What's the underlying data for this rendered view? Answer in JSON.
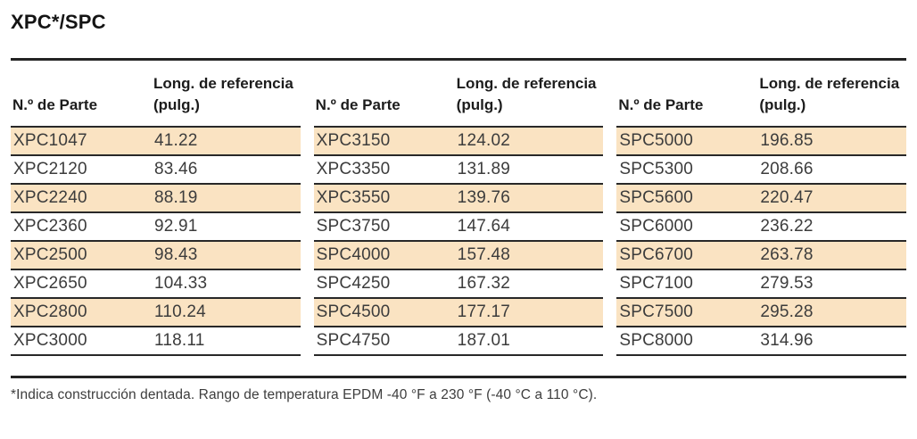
{
  "title": "XPC*/SPC",
  "table": {
    "headers": {
      "part": "N.º de Parte",
      "length": "Long. de referencia (pulg.)"
    },
    "groups": [
      {
        "rows": [
          {
            "part": "XPC1047",
            "length": "41.22"
          },
          {
            "part": "XPC2120",
            "length": "83.46"
          },
          {
            "part": "XPC2240",
            "length": "88.19"
          },
          {
            "part": "XPC2360",
            "length": "92.91"
          },
          {
            "part": "XPC2500",
            "length": "98.43"
          },
          {
            "part": "XPC2650",
            "length": "104.33"
          },
          {
            "part": "XPC2800",
            "length": "110.24"
          },
          {
            "part": "XPC3000",
            "length": "118.11"
          }
        ]
      },
      {
        "rows": [
          {
            "part": "XPC3150",
            "length": "124.02"
          },
          {
            "part": "XPC3350",
            "length": "131.89"
          },
          {
            "part": "XPC3550",
            "length": "139.76"
          },
          {
            "part": "SPC3750",
            "length": "147.64"
          },
          {
            "part": "SPC4000",
            "length": "157.48"
          },
          {
            "part": "SPC4250",
            "length": "167.32"
          },
          {
            "part": "SPC4500",
            "length": "177.17"
          },
          {
            "part": "SPC4750",
            "length": "187.01"
          }
        ]
      },
      {
        "rows": [
          {
            "part": "SPC5000",
            "length": "196.85"
          },
          {
            "part": "SPC5300",
            "length": "208.66"
          },
          {
            "part": "SPC5600",
            "length": "220.47"
          },
          {
            "part": "SPC6000",
            "length": "236.22"
          },
          {
            "part": "SPC6700",
            "length": "263.78"
          },
          {
            "part": "SPC7100",
            "length": "279.53"
          },
          {
            "part": "SPC7500",
            "length": "295.28"
          },
          {
            "part": "SPC8000",
            "length": "314.96"
          }
        ]
      }
    ]
  },
  "footnote": "*Indica construcción dentada. Rango de temperatura EPDM -40 °F a 230 °F (-40 °C a 110 °C).",
  "colors": {
    "row_highlight": "#fae3c2",
    "rule": "#232323",
    "text": "#3c3c3c"
  }
}
